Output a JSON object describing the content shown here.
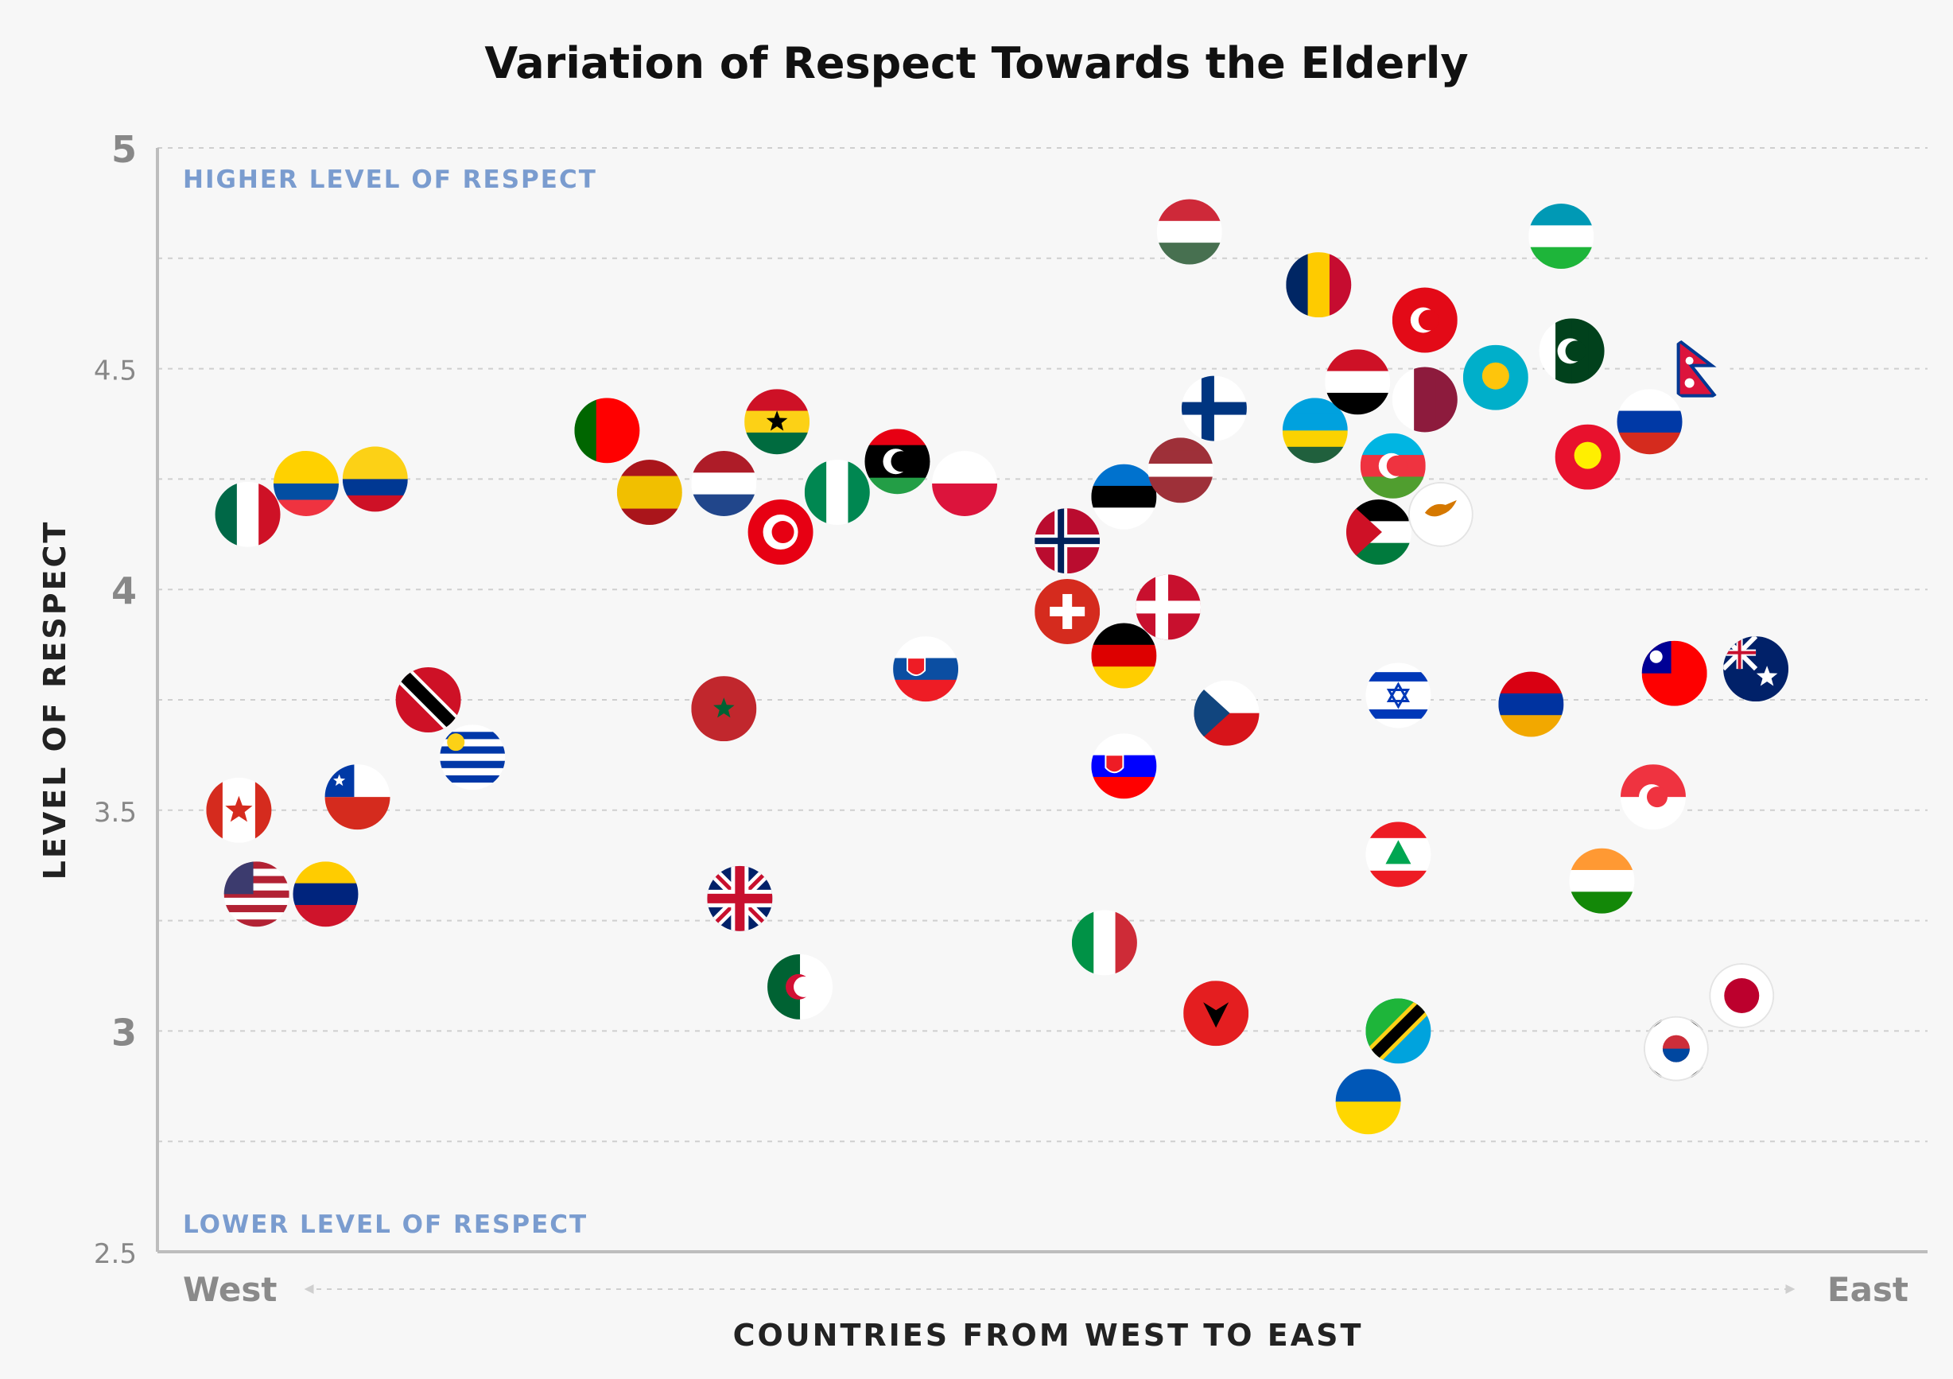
{
  "chart_data": {
    "type": "scatter",
    "title": "Variation of Respect Towards the Elderly",
    "xlabel": "COUNTRIES FROM WEST TO EAST",
    "ylabel": "LEVEL OF RESPECT",
    "x_direction_labels": {
      "left": "West",
      "right": "East"
    },
    "annotations": {
      "top": "HIGHER LEVEL OF RESPECT",
      "bottom": "LOWER LEVEL OF RESPECT"
    },
    "ylim": [
      2.5,
      5
    ],
    "yticks": [
      "2.5",
      "3",
      "3.5",
      "4",
      "4.5",
      "5"
    ],
    "grid": true,
    "points": [
      {
        "country": "Mexico",
        "x": 0.051,
        "y": 4.17
      },
      {
        "country": "Ecuador",
        "x": 0.084,
        "y": 4.24
      },
      {
        "country": "Colombia",
        "x": 0.123,
        "y": 4.25
      },
      {
        "country": "Canada",
        "x": 0.046,
        "y": 3.5
      },
      {
        "country": "United States",
        "x": 0.056,
        "y": 3.31
      },
      {
        "country": "Venezuela",
        "x": 0.095,
        "y": 3.31
      },
      {
        "country": "Chile",
        "x": 0.113,
        "y": 3.53
      },
      {
        "country": "Trinidad and Tobago",
        "x": 0.153,
        "y": 3.75
      },
      {
        "country": "Uruguay",
        "x": 0.178,
        "y": 3.62
      },
      {
        "country": "Portugal",
        "x": 0.254,
        "y": 4.36
      },
      {
        "country": "Spain",
        "x": 0.278,
        "y": 4.22
      },
      {
        "country": "Netherlands",
        "x": 0.32,
        "y": 4.24
      },
      {
        "country": "Ghana",
        "x": 0.35,
        "y": 4.38
      },
      {
        "country": "Tunisia",
        "x": 0.352,
        "y": 4.13
      },
      {
        "country": "Morocco",
        "x": 0.32,
        "y": 3.73
      },
      {
        "country": "United Kingdom",
        "x": 0.329,
        "y": 3.3
      },
      {
        "country": "Algeria",
        "x": 0.363,
        "y": 3.1
      },
      {
        "country": "Nigeria",
        "x": 0.384,
        "y": 4.22
      },
      {
        "country": "Libya",
        "x": 0.418,
        "y": 4.29
      },
      {
        "country": "Poland",
        "x": 0.456,
        "y": 4.24
      },
      {
        "country": "Slovakia",
        "x": 0.434,
        "y": 3.82
      },
      {
        "country": "Norway",
        "x": 0.514,
        "y": 4.11
      },
      {
        "country": "Switzerland",
        "x": 0.514,
        "y": 3.95
      },
      {
        "country": "Estonia",
        "x": 0.546,
        "y": 4.21
      },
      {
        "country": "Germany",
        "x": 0.546,
        "y": 3.85
      },
      {
        "country": "Slovenia",
        "x": 0.546,
        "y": 3.6
      },
      {
        "country": "Italy",
        "x": 0.535,
        "y": 3.2
      },
      {
        "country": "Denmark",
        "x": 0.571,
        "y": 3.96
      },
      {
        "country": "Latvia",
        "x": 0.578,
        "y": 4.27
      },
      {
        "country": "Hungary",
        "x": 0.583,
        "y": 4.81
      },
      {
        "country": "Finland",
        "x": 0.597,
        "y": 4.41
      },
      {
        "country": "Czech Republic",
        "x": 0.604,
        "y": 3.72
      },
      {
        "country": "Albania",
        "x": 0.598,
        "y": 3.04
      },
      {
        "country": "Chad",
        "x": 0.656,
        "y": 4.69
      },
      {
        "country": "Rwanda",
        "x": 0.654,
        "y": 4.36
      },
      {
        "country": "Yemen",
        "x": 0.678,
        "y": 4.47
      },
      {
        "country": "Jordan",
        "x": 0.69,
        "y": 4.13
      },
      {
        "country": "Azerbaijan",
        "x": 0.698,
        "y": 4.28
      },
      {
        "country": "Israel",
        "x": 0.701,
        "y": 3.76
      },
      {
        "country": "Lebanon",
        "x": 0.701,
        "y": 3.4
      },
      {
        "country": "Tanzania",
        "x": 0.701,
        "y": 3.0
      },
      {
        "country": "Ukraine",
        "x": 0.684,
        "y": 2.84
      },
      {
        "country": "Turkey",
        "x": 0.716,
        "y": 4.61
      },
      {
        "country": "Qatar",
        "x": 0.716,
        "y": 4.43
      },
      {
        "country": "Cyprus",
        "x": 0.725,
        "y": 4.17
      },
      {
        "country": "Kazakhstan",
        "x": 0.756,
        "y": 4.48
      },
      {
        "country": "Armenia",
        "x": 0.776,
        "y": 3.74
      },
      {
        "country": "Uzbekistan",
        "x": 0.793,
        "y": 4.8
      },
      {
        "country": "Pakistan",
        "x": 0.799,
        "y": 4.54
      },
      {
        "country": "Kyrgyzstan",
        "x": 0.808,
        "y": 4.3
      },
      {
        "country": "India",
        "x": 0.816,
        "y": 3.34
      },
      {
        "country": "Russia",
        "x": 0.843,
        "y": 4.38
      },
      {
        "country": "Singapore",
        "x": 0.845,
        "y": 3.53
      },
      {
        "country": "Taiwan",
        "x": 0.857,
        "y": 3.81
      },
      {
        "country": "South Korea",
        "x": 0.858,
        "y": 2.96
      },
      {
        "country": "Nepal",
        "x": 0.87,
        "y": 4.5
      },
      {
        "country": "Australia",
        "x": 0.903,
        "y": 3.82
      },
      {
        "country": "Japan",
        "x": 0.895,
        "y": 3.08
      }
    ]
  },
  "colors": {
    "background": "#f7f7f7",
    "region_label": "#7a9ccf",
    "axis": "#bdbdbd",
    "tick_label": "#888888"
  }
}
